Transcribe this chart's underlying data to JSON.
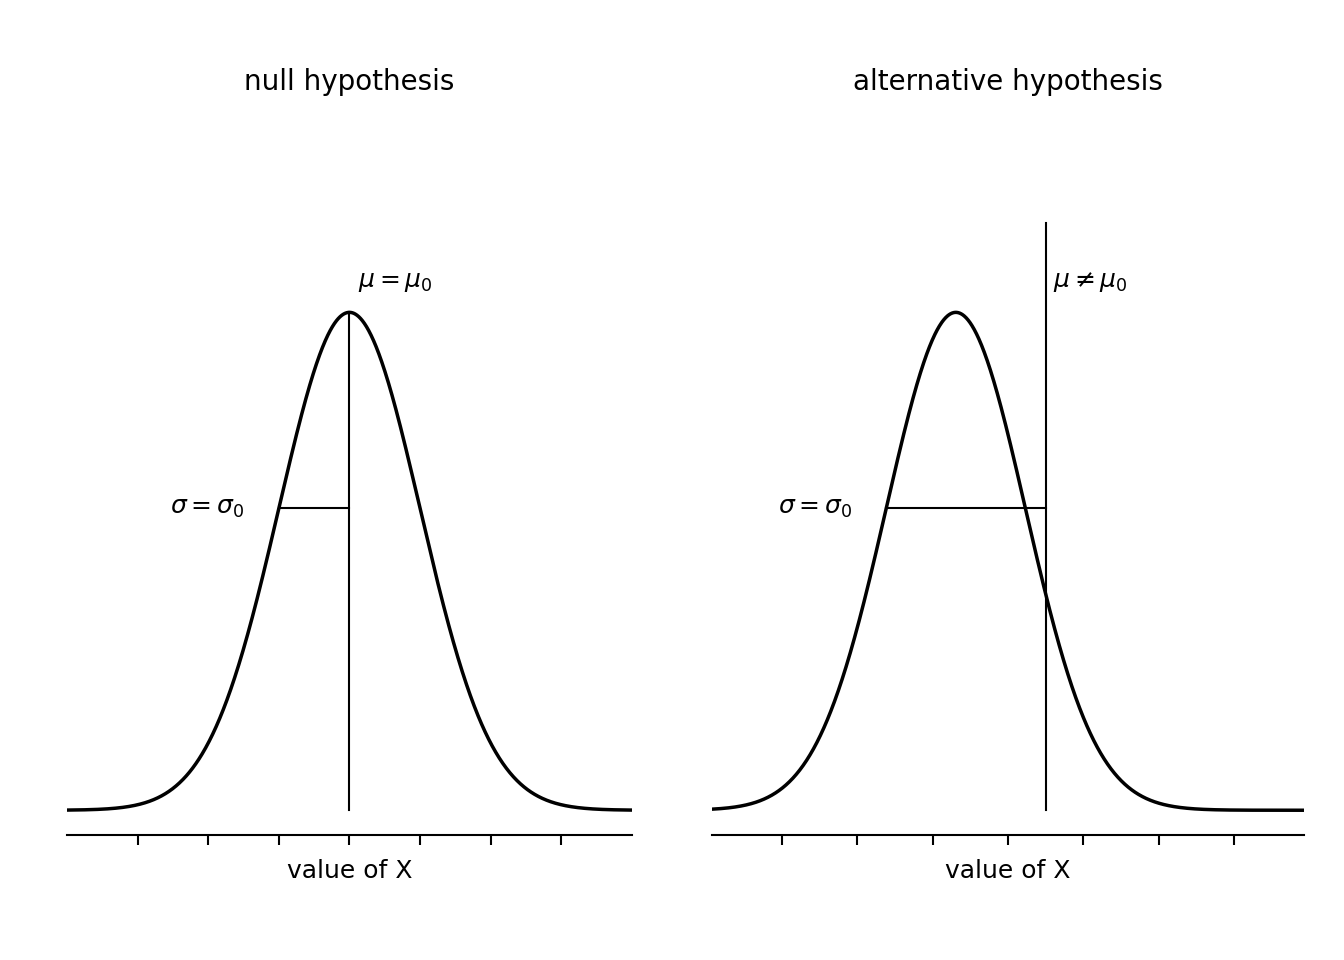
{
  "background_color": "#ffffff",
  "title_null": "null hypothesis",
  "title_alt": "alternative hypothesis",
  "xlabel": "value of X",
  "null_label_mu": "$\\mu = \\mu_0$",
  "null_label_sigma": "$\\sigma = \\sigma_0$",
  "alt_label_mu": "$\\mu \\neq \\mu_0$",
  "alt_label_sigma": "$\\sigma = \\sigma_0$",
  "curve_color": "#000000",
  "line_color": "#000000",
  "axis_color": "#000000",
  "title_fontsize": 20,
  "label_fontsize": 18,
  "xlabel_fontsize": 18,
  "curve_lw": 2.5,
  "null_mean": 0.0,
  "null_sigma": 1.0,
  "alt_mean": -0.5,
  "alt_sigma": 1.0,
  "alt_vline": 0.8,
  "xlim_null": [
    -4.0,
    4.0
  ],
  "ylim_null": [
    -0.02,
    0.48
  ],
  "xlim_alt": [
    -4.0,
    4.5
  ],
  "ylim_alt": [
    -0.02,
    0.48
  ]
}
